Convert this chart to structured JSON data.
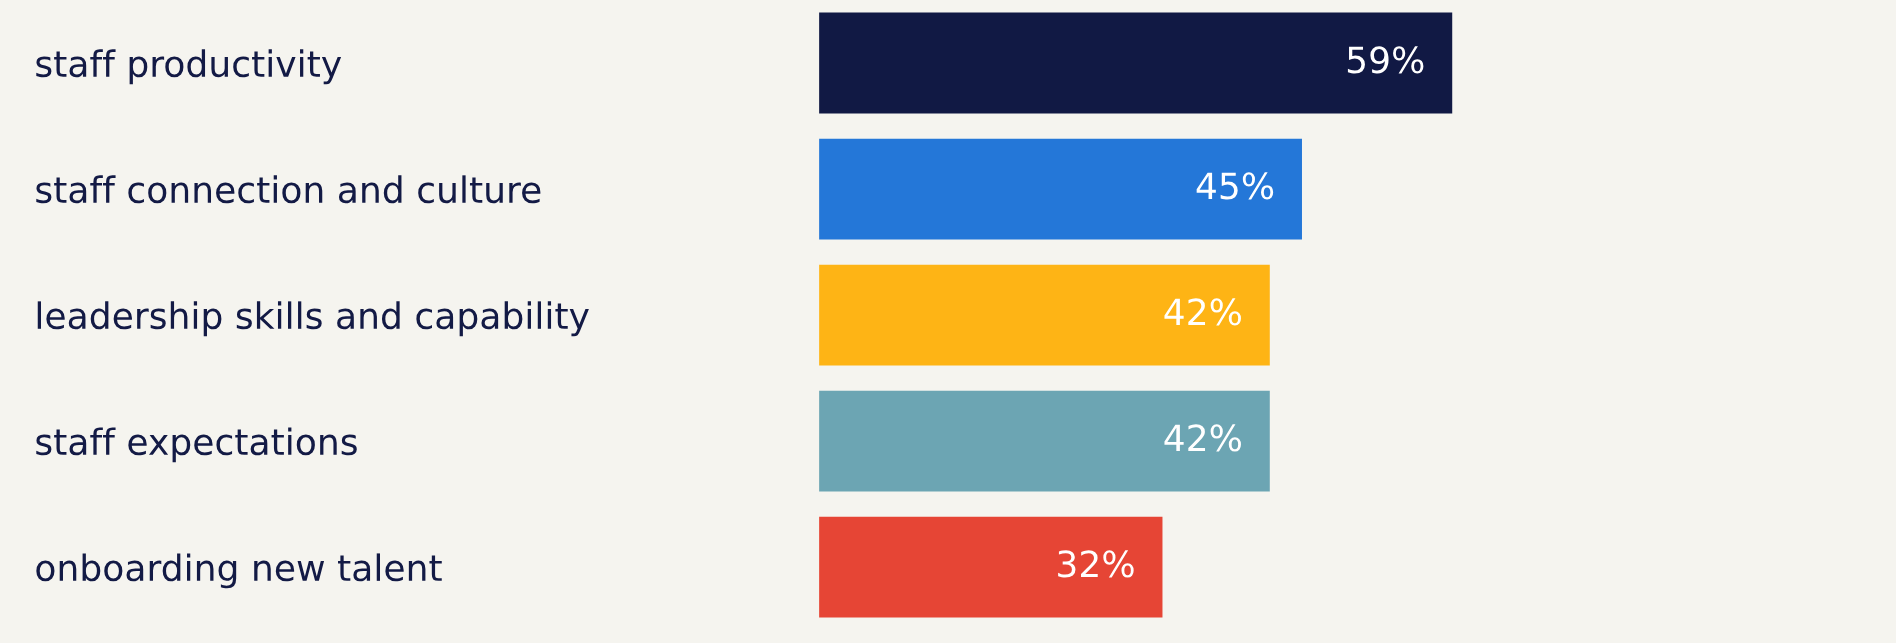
{
  "chart_data": {
    "type": "bar",
    "orientation": "horizontal",
    "categories": [
      "staff productivity",
      "staff connection and culture",
      "leadership skills and capability",
      "staff expectations",
      "onboarding new talent"
    ],
    "values": [
      59,
      45,
      42,
      42,
      32
    ],
    "colors": [
      "#111944",
      "#2477d8",
      "#feb415",
      "#6ca5b3",
      "#e64535"
    ],
    "value_labels": [
      "59%",
      "45%",
      "42%",
      "42%",
      "32%"
    ],
    "xlim": [
      0,
      100
    ],
    "tick_labels": "y",
    "grid": false,
    "legend": false
  }
}
